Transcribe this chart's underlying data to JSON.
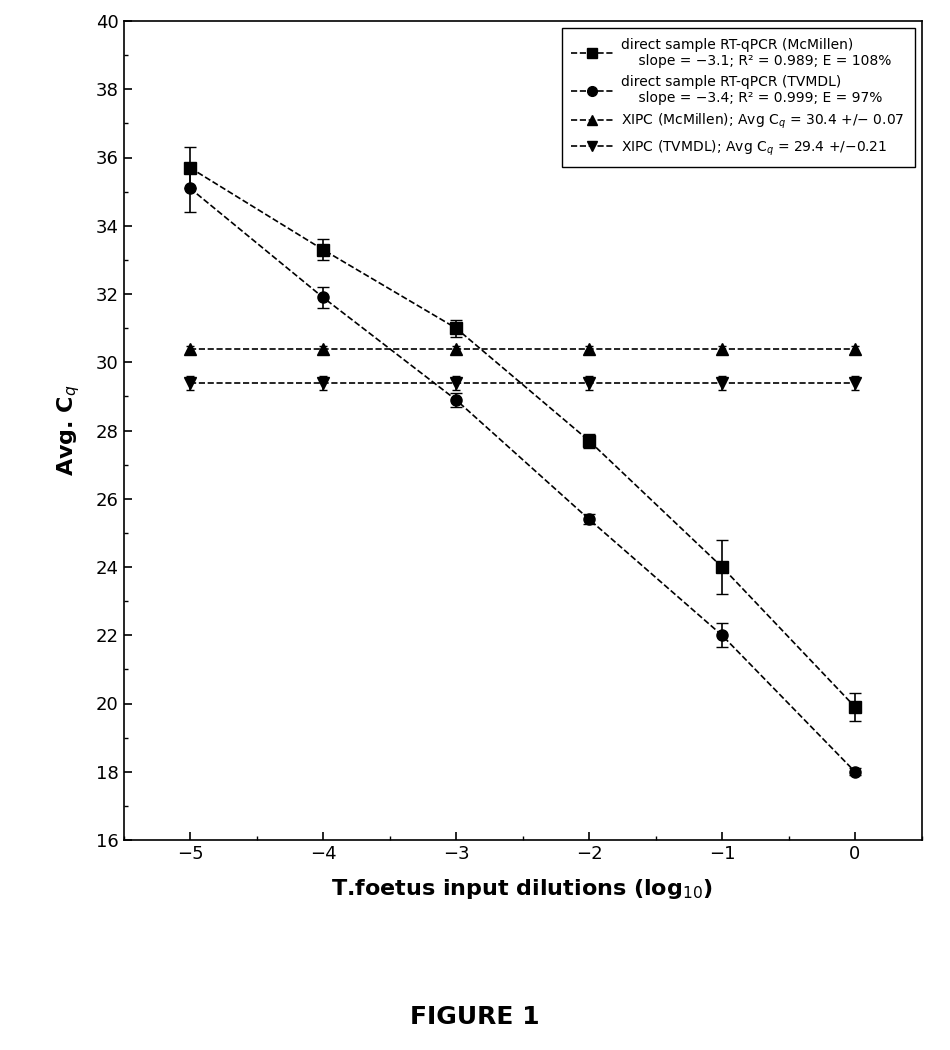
{
  "x": [
    -5,
    -4,
    -3,
    -2,
    -1,
    0
  ],
  "mcmillen_y": [
    35.7,
    33.3,
    31.0,
    27.7,
    24.0,
    19.9
  ],
  "mcmillen_yerr": [
    0.6,
    0.3,
    0.25,
    0.2,
    0.8,
    0.4
  ],
  "tvmdl_y": [
    35.1,
    31.9,
    28.9,
    25.4,
    22.0,
    18.0
  ],
  "tvmdl_yerr": [
    0.7,
    0.3,
    0.2,
    0.15,
    0.35,
    0.1
  ],
  "xipc_mcmillen_y": [
    30.4,
    30.4,
    30.4,
    30.4,
    30.4,
    30.4
  ],
  "xipc_mcmillen_yerr": [
    0.07,
    0.07,
    0.07,
    0.07,
    0.07,
    0.07
  ],
  "xipc_tvmdl_y": [
    29.4,
    29.4,
    29.4,
    29.4,
    29.4,
    29.4
  ],
  "xipc_tvmdl_yerr": [
    0.21,
    0.21,
    0.21,
    0.21,
    0.21,
    0.21
  ],
  "xlabel": "T.foetus input dilutions (log$_{10}$)",
  "ylabel": "Avg. C$_q$",
  "xlim": [
    -5.5,
    0.5
  ],
  "ylim": [
    16,
    40
  ],
  "yticks": [
    16,
    18,
    20,
    22,
    24,
    26,
    28,
    30,
    32,
    34,
    36,
    38,
    40
  ],
  "xticks": [
    -5,
    -4,
    -3,
    -2,
    -1,
    0
  ],
  "figure_label": "FIGURE 1",
  "legend_line1": "direct sample RT-qPCR (McMillen)",
  "legend_line1b": "    slope = −3.1; R² = 0.989; E = 108%",
  "legend_line2": "direct sample RT-qPCR (TVMDL)",
  "legend_line2b": "    slope = −3.4; R² = 0.999; E = 97%",
  "legend_line3": "XIPC (McMillen); Avg C$_q$ = 30.4 +/− 0.07",
  "legend_line4": "XIPC (TVMDL); Avg C$_q$ = 29.4 +/−0.21",
  "line_color": "black",
  "background_color": "white"
}
